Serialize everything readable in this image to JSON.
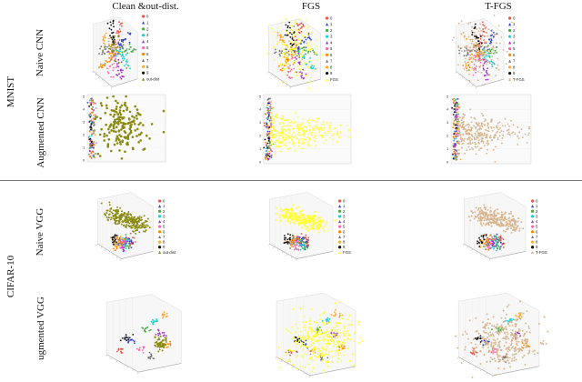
{
  "columns": [
    "Clean &out-dist.",
    "FGS",
    "T-FGS"
  ],
  "datasets": [
    "MNIST",
    "CIFAR-10"
  ],
  "models": [
    "Naive CNN",
    "Augmented CNN",
    "Naive VGG",
    "ugmented VGG"
  ],
  "legend": {
    "digits": [
      "0",
      "1",
      "2",
      "3",
      "4",
      "5",
      "6",
      "7",
      "8",
      "9"
    ],
    "extra": [
      "out-dist",
      "FGS",
      "T-FGS"
    ]
  },
  "colors": {
    "class_palette": [
      "#e8544c",
      "#3344cc",
      "#44aa44",
      "#22cccc",
      "#9933cc",
      "#ff66aa",
      "#ff8800",
      "#777777",
      "#ffaa33",
      "#111111"
    ],
    "outdist": "#8a8a12",
    "fgs": "#ffff33",
    "tfgs": "#d8b48c"
  }
}
